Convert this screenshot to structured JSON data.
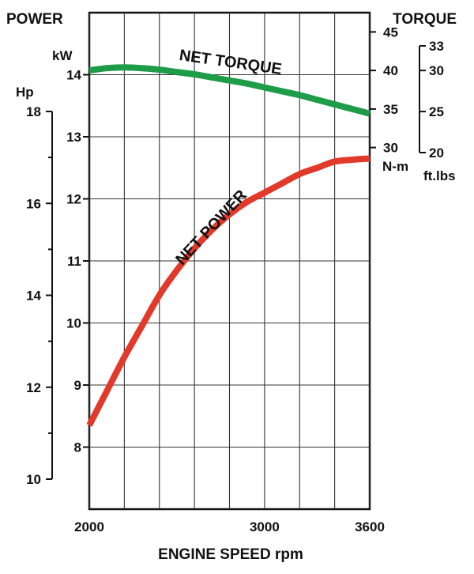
{
  "chart_data": {
    "type": "line",
    "title": "",
    "power_title": "POWER",
    "torque_title": "TORQUE",
    "xlabel": "ENGINE SPEED rpm",
    "xlim": [
      2000,
      3600
    ],
    "x_ticks": [
      {
        "value": 2000,
        "label": "2000"
      },
      {
        "value": 3000,
        "label": "3000"
      },
      {
        "value": 3600,
        "label": "3600"
      }
    ],
    "x_gridlines": [
      2000,
      2200,
      2400,
      2600,
      2800,
      3000,
      3200,
      3400,
      3600
    ],
    "grid": true,
    "axes": {
      "kw": {
        "unit": "kW",
        "range": [
          7,
          15
        ],
        "ticks": [
          {
            "value": 8,
            "label": "8"
          },
          {
            "value": 9,
            "label": "9"
          },
          {
            "value": 10,
            "label": "10"
          },
          {
            "value": 11,
            "label": "11"
          },
          {
            "value": 12,
            "label": "12"
          },
          {
            "value": 13,
            "label": "13"
          },
          {
            "value": 14,
            "label": "14"
          }
        ]
      },
      "hp": {
        "unit": "Hp",
        "range": [
          10,
          18
        ],
        "ticks": [
          {
            "value": 10,
            "label": "10"
          },
          {
            "value": 12,
            "label": "12"
          },
          {
            "value": 14,
            "label": "14"
          },
          {
            "value": 16,
            "label": "16"
          },
          {
            "value": 18,
            "label": "18"
          }
        ],
        "minor_ticks": [
          11,
          13,
          15,
          17
        ]
      },
      "nm": {
        "unit": "N-m",
        "range": [
          27.5,
          47.5
        ],
        "ticks": [
          {
            "value": 30,
            "label": "30"
          },
          {
            "value": 35,
            "label": "35"
          },
          {
            "value": 40,
            "label": "40"
          },
          {
            "value": 45,
            "label": "45"
          }
        ]
      },
      "ftlbs": {
        "unit": "ft.lbs",
        "range": [
          20,
          33
        ],
        "ticks": [
          {
            "value": 20,
            "label": "20"
          },
          {
            "value": 25,
            "label": "25"
          },
          {
            "value": 30,
            "label": "30"
          },
          {
            "value": 33,
            "label": "33"
          }
        ]
      }
    },
    "series": [
      {
        "name": "NET TORQUE",
        "axis": "nm",
        "color": "#1e9c48",
        "x": [
          2000,
          2100,
          2200,
          2300,
          2400,
          2500,
          2600,
          2700,
          2800,
          2900,
          3000,
          3100,
          3200,
          3300,
          3400,
          3500,
          3600
        ],
        "y": [
          40.0,
          40.3,
          40.4,
          40.3,
          40.1,
          39.8,
          39.5,
          39.1,
          38.7,
          38.3,
          37.8,
          37.3,
          36.8,
          36.2,
          35.6,
          35.0,
          34.4
        ]
      },
      {
        "name": "NET POWER",
        "axis": "kw",
        "color": "#e23a2a",
        "x": [
          2000,
          2100,
          2200,
          2300,
          2400,
          2500,
          2600,
          2700,
          2800,
          2900,
          3000,
          3100,
          3200,
          3300,
          3400,
          3500,
          3600
        ],
        "y": [
          8.35,
          8.9,
          9.45,
          9.95,
          10.45,
          10.85,
          11.2,
          11.5,
          11.75,
          11.95,
          12.1,
          12.25,
          12.4,
          12.5,
          12.6,
          12.63,
          12.65
        ]
      }
    ]
  }
}
